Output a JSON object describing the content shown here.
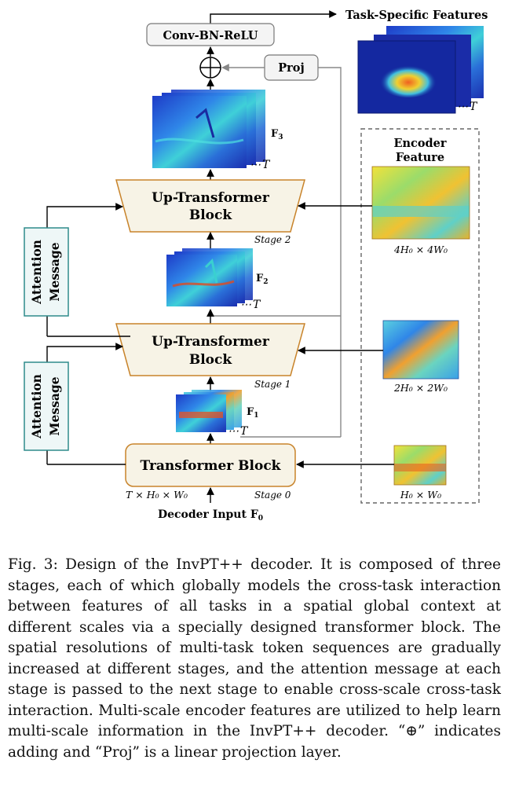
{
  "diagram": {
    "conv_label": "Conv-BN-ReLU",
    "proj_label": "Proj",
    "task_features_label": "Task-Specific Features",
    "encoder_feature_title_line1": "Encoder",
    "encoder_feature_title_line2": "Feature",
    "up_block_stage2_line1": "Up-Transformer",
    "up_block_stage2_line2": "Block",
    "up_block_stage1_line1": "Up-Transformer",
    "up_block_stage1_line2": "Block",
    "transformer_block_label": "Transformer Block",
    "stage2_label": "Stage 2",
    "stage1_label": "Stage 1",
    "stage0_label": "Stage 0",
    "attention_label_line1": "Attention",
    "attention_label_line2": "Message",
    "f3_label": "F",
    "f3_sub": "3",
    "f2_label": "F",
    "f2_sub": "2",
    "f1_label": "F",
    "f1_sub": "1",
    "t_label": "T",
    "ellipsis": "⋯",
    "input_dims_label": "T × H₀ × W₀",
    "decoder_input_label": "Decoder Input F",
    "decoder_input_sub": "0",
    "enc_scale_4": "4H₀ × 4W₀",
    "enc_scale_2": "2H₀ × 2W₀",
    "enc_scale_1": "H₀ × W₀",
    "colors": {
      "block_fill": "#f7f3e6",
      "block_stroke": "#c8832a",
      "attention_stroke": "#2e8b8b",
      "attention_fill": "#eef7f7",
      "arrow_gray": "#888888"
    }
  },
  "caption": "Fig. 3: Design of the InvPT++ decoder. It is composed of three stages, each of which globally models the cross-task interaction between features of all tasks in a spatial global context at different scales via a specially designed transformer block. The spatial resolutions of multi-task token sequences are gradually increased at different stages, and the attention message at each stage is passed to the next stage to enable cross-scale cross-task interaction. Multi-scale encoder features are utilized to help learn multi-scale information in the InvPT++ decoder. “⊕” indicates adding and “Proj” is a linear projection layer."
}
